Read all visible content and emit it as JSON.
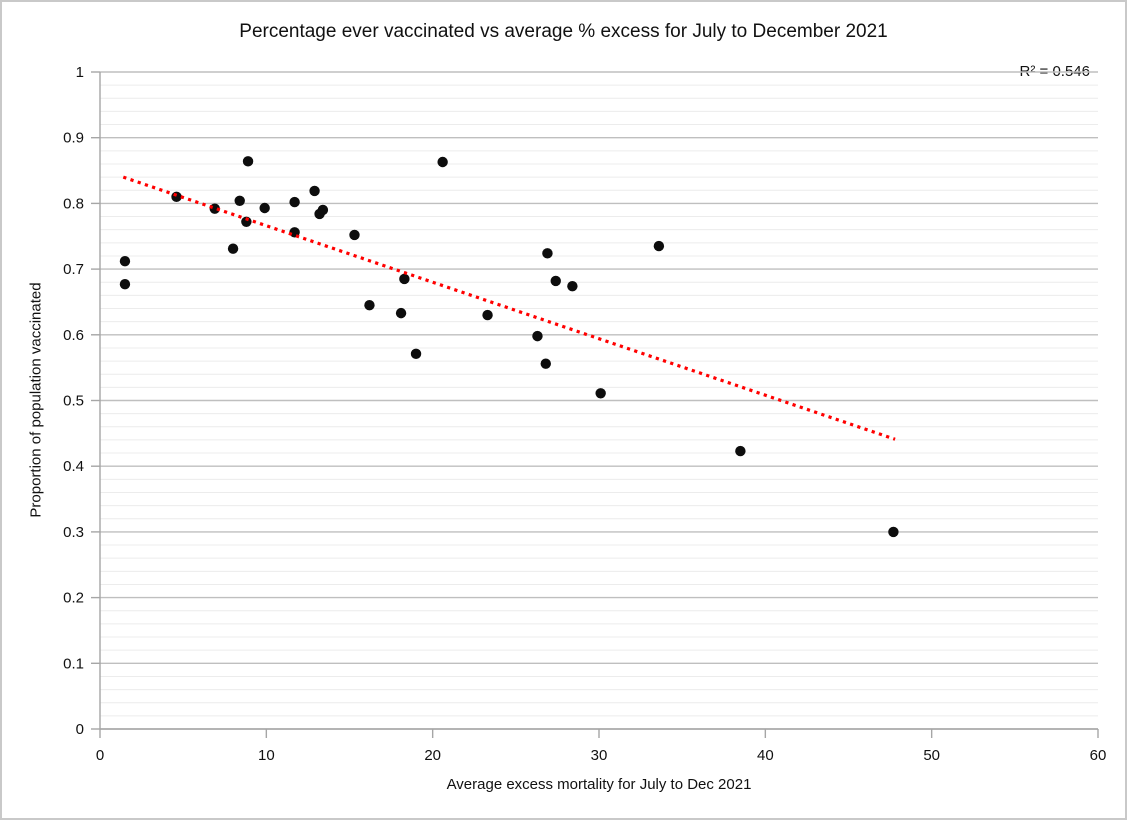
{
  "chart_data": {
    "type": "scatter",
    "title": "Percentage ever vaccinated vs average % excess for July to December 2021",
    "xlabel": "Average excess mortality for July to Dec 2021",
    "ylabel": "Proportion of population vaccinated",
    "annotation": "R² = 0.546",
    "r_squared": 0.546,
    "xlim": [
      0,
      60
    ],
    "ylim": [
      0,
      1
    ],
    "x_ticks": [
      {
        "v": 0,
        "label": "0"
      },
      {
        "v": 10,
        "label": "10"
      },
      {
        "v": 20,
        "label": "20"
      },
      {
        "v": 30,
        "label": "30"
      },
      {
        "v": 40,
        "label": "40"
      },
      {
        "v": 50,
        "label": "50"
      },
      {
        "v": 60,
        "label": "60"
      }
    ],
    "y_ticks": [
      {
        "v": 0,
        "label": "0"
      },
      {
        "v": 0.1,
        "label": "0.1"
      },
      {
        "v": 0.2,
        "label": "0.2"
      },
      {
        "v": 0.3,
        "label": "0.3"
      },
      {
        "v": 0.4,
        "label": "0.4"
      },
      {
        "v": 0.5,
        "label": "0.5"
      },
      {
        "v": 0.6,
        "label": "0.6"
      },
      {
        "v": 0.7,
        "label": "0.7"
      },
      {
        "v": 0.8,
        "label": "0.8"
      },
      {
        "v": 0.9,
        "label": "0.9"
      },
      {
        "v": 1,
        "label": "1"
      }
    ],
    "y_minor_step": 0.02,
    "grid": "horizontal-only",
    "legend": "none",
    "points": [
      [
        1.5,
        0.712
      ],
      [
        1.5,
        0.677
      ],
      [
        4.6,
        0.81
      ],
      [
        6.9,
        0.792
      ],
      [
        8.0,
        0.731
      ],
      [
        8.4,
        0.804
      ],
      [
        8.8,
        0.772
      ],
      [
        8.9,
        0.864
      ],
      [
        9.9,
        0.793
      ],
      [
        11.7,
        0.802
      ],
      [
        11.7,
        0.756
      ],
      [
        12.9,
        0.819
      ],
      [
        13.2,
        0.784
      ],
      [
        13.4,
        0.79
      ],
      [
        15.3,
        0.752
      ],
      [
        16.2,
        0.645
      ],
      [
        18.1,
        0.633
      ],
      [
        18.3,
        0.685
      ],
      [
        19.0,
        0.571
      ],
      [
        20.6,
        0.863
      ],
      [
        23.3,
        0.63
      ],
      [
        26.3,
        0.598
      ],
      [
        26.8,
        0.556
      ],
      [
        26.9,
        0.724
      ],
      [
        27.4,
        0.682
      ],
      [
        28.4,
        0.674
      ],
      [
        30.1,
        0.511
      ],
      [
        33.6,
        0.735
      ],
      [
        38.5,
        0.423
      ],
      [
        47.7,
        0.3
      ]
    ],
    "trendline": {
      "style": "dotted",
      "x1": 1.4,
      "y1": 0.84,
      "x2": 47.8,
      "y2": 0.441
    },
    "colors": {
      "point": "#0d0d0d",
      "trendline": "#ff0000",
      "major_grid": "#bfbfbf",
      "minor_grid": "#ececec",
      "axis": "#a6a6a6",
      "text": "#111111"
    }
  }
}
